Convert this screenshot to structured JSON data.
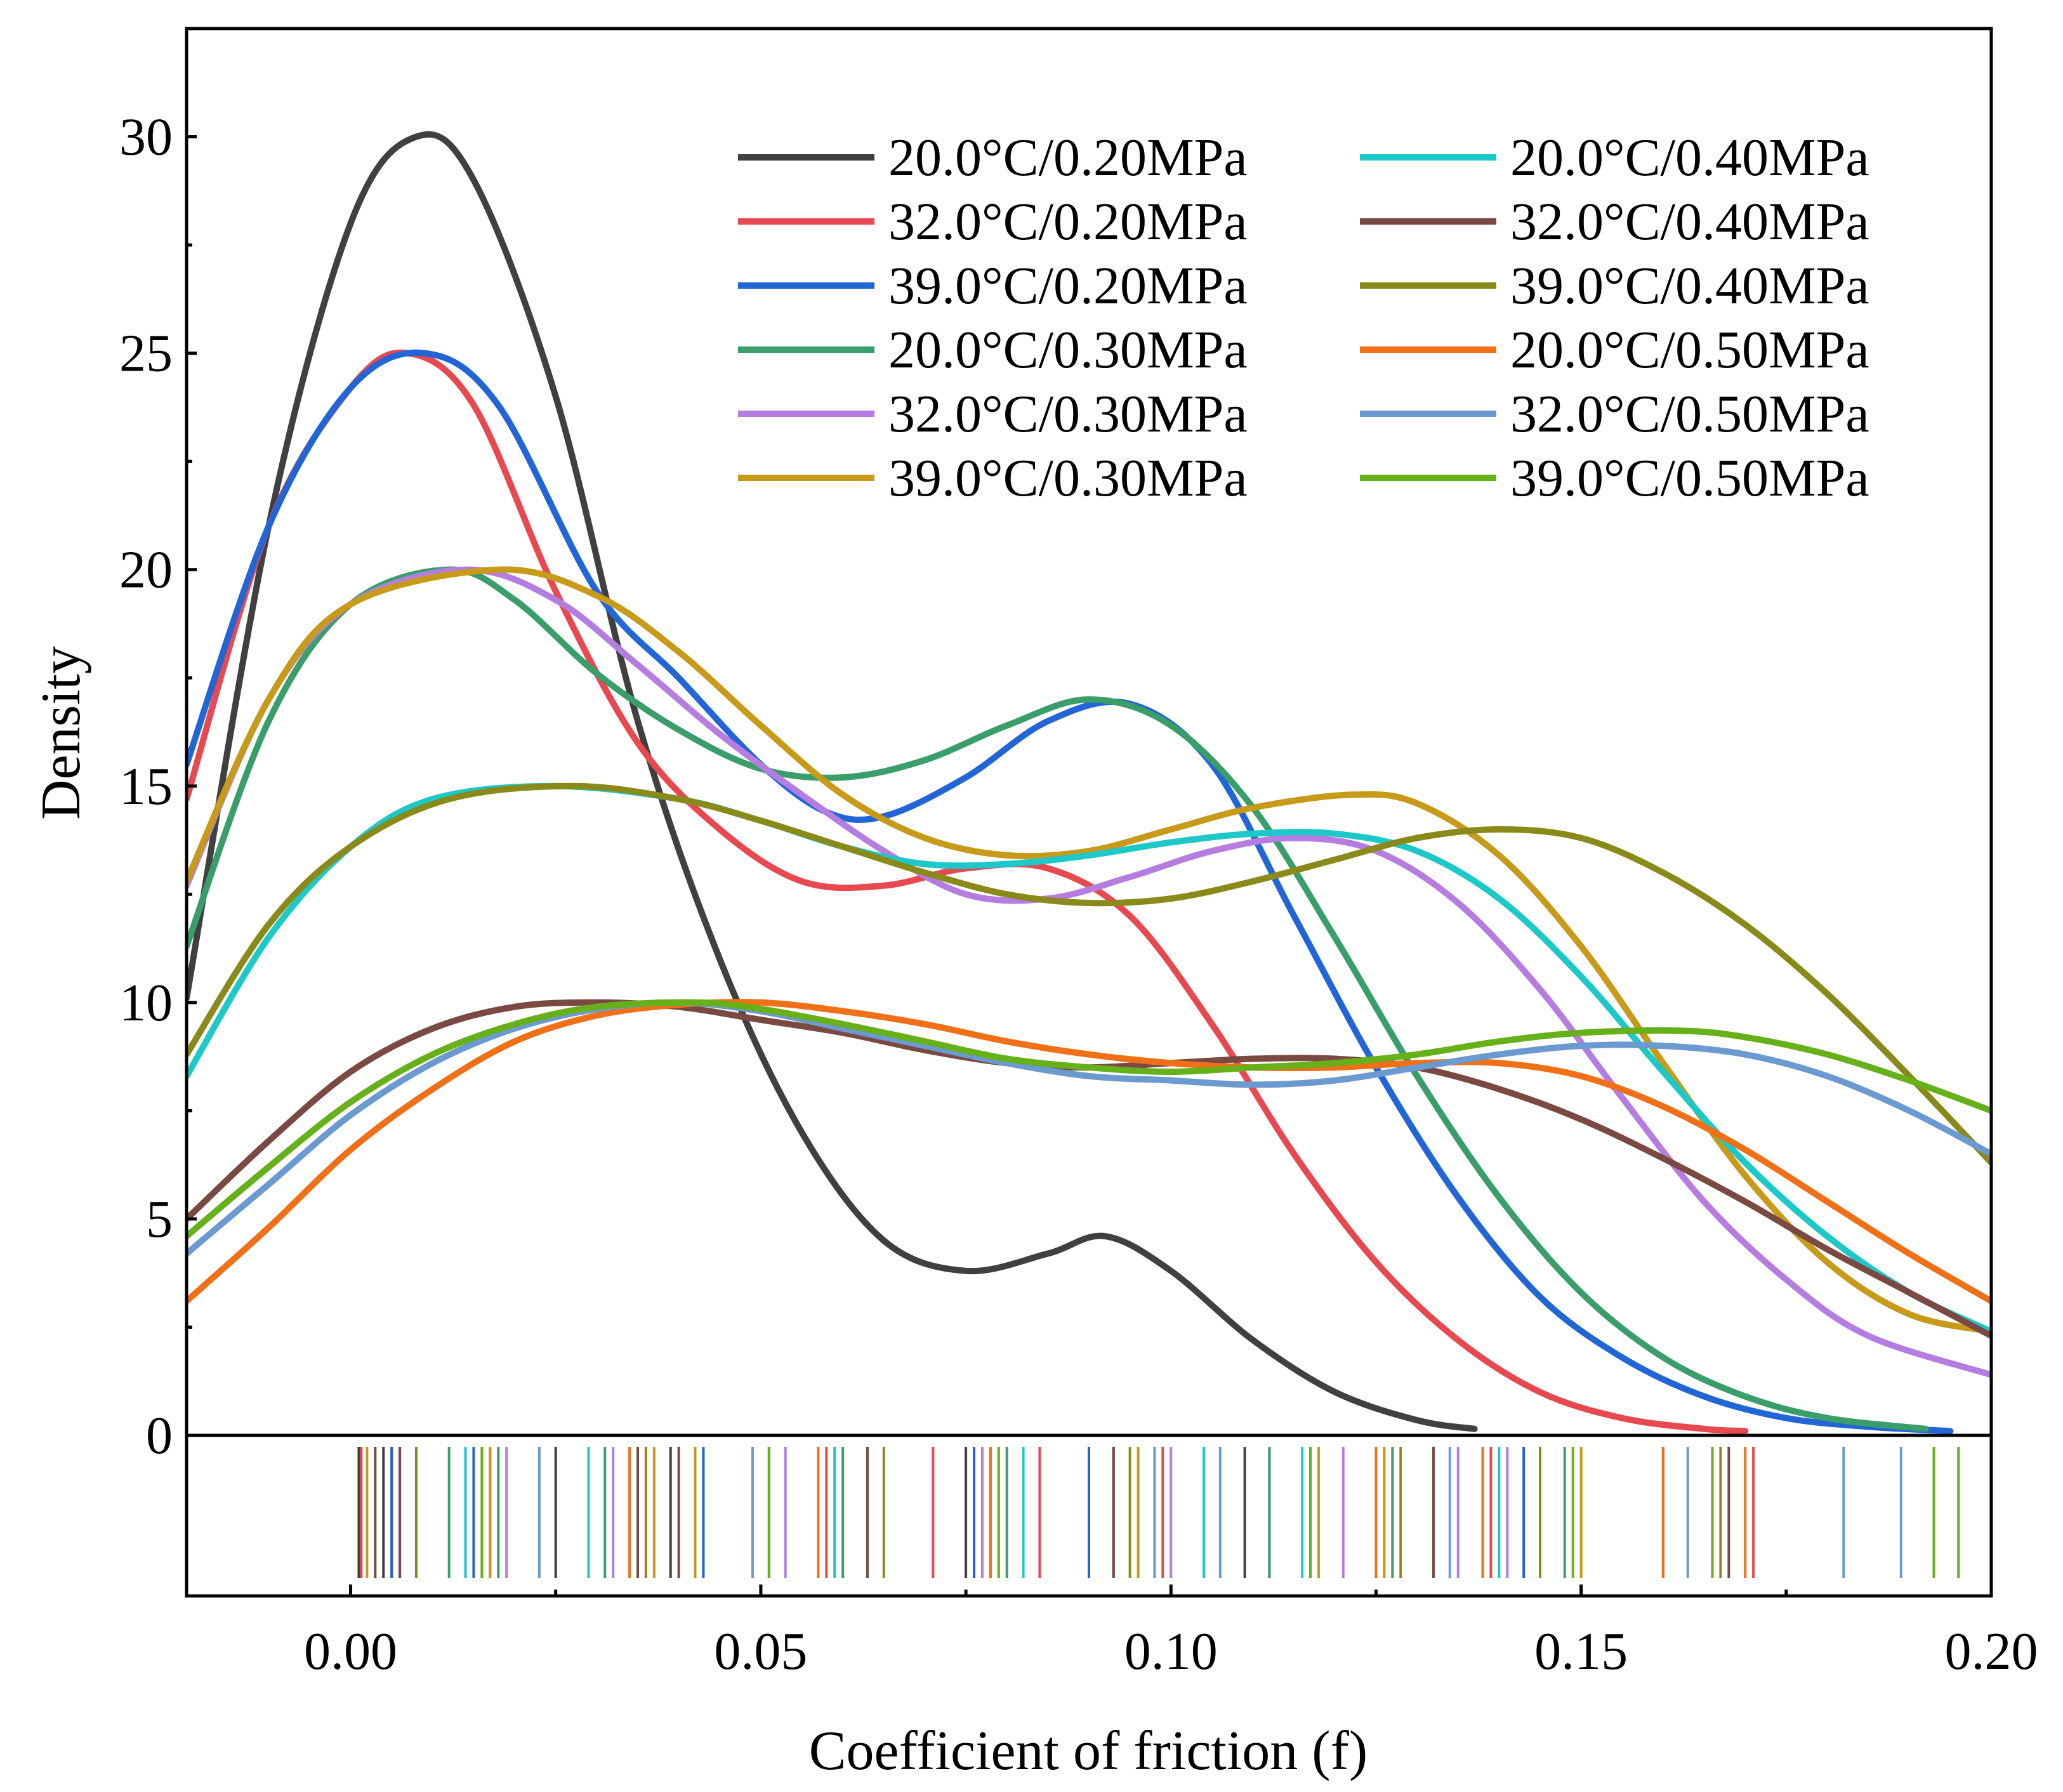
{
  "chart_data": {
    "type": "line",
    "title": "",
    "xlabel": "Coefficient of friction (f)",
    "ylabel": "Density",
    "xlim": [
      -0.02,
      0.2
    ],
    "ylim": [
      0,
      32.5
    ],
    "x_ticks": [
      0.0,
      0.05,
      0.1,
      0.15,
      0.2
    ],
    "x_tick_labels": [
      "0.00",
      "0.05",
      "0.10",
      "0.15",
      "0.20"
    ],
    "y_ticks": [
      0,
      5,
      10,
      15,
      20,
      25,
      30
    ],
    "y_tick_labels": [
      "0",
      "5",
      "10",
      "15",
      "20",
      "25",
      "30"
    ],
    "legend_position": "top-right",
    "series": [
      {
        "name": "20.0°C/0.20MPa",
        "color": "#404040",
        "points": [
          [
            -0.02,
            10.1
          ],
          [
            -0.01,
            21
          ],
          [
            0.0,
            28
          ],
          [
            0.008,
            30
          ],
          [
            0.015,
            29
          ],
          [
            0.025,
            24
          ],
          [
            0.035,
            16.5
          ],
          [
            0.045,
            11
          ],
          [
            0.055,
            7
          ],
          [
            0.065,
            4.5
          ],
          [
            0.075,
            3.8
          ],
          [
            0.085,
            4.2
          ],
          [
            0.092,
            4.6
          ],
          [
            0.1,
            3.8
          ],
          [
            0.11,
            2.2
          ],
          [
            0.12,
            1
          ],
          [
            0.13,
            0.35
          ],
          [
            0.137,
            0.15
          ]
        ],
        "rug": [
          0.001,
          0.004,
          0.006,
          0.008,
          0.025,
          0.039,
          0.075,
          0.093,
          0.109,
          0.132
        ]
      },
      {
        "name": "32.0°C/0.20MPa",
        "color": "#e8484f",
        "points": [
          [
            -0.02,
            14.7
          ],
          [
            -0.01,
            21
          ],
          [
            0.0,
            24.2
          ],
          [
            0.007,
            25
          ],
          [
            0.015,
            23.8
          ],
          [
            0.025,
            19.5
          ],
          [
            0.035,
            16
          ],
          [
            0.045,
            14
          ],
          [
            0.055,
            12.8
          ],
          [
            0.065,
            12.7
          ],
          [
            0.075,
            13.1
          ],
          [
            0.085,
            13.1
          ],
          [
            0.095,
            12
          ],
          [
            0.105,
            9.5
          ],
          [
            0.115,
            6.5
          ],
          [
            0.125,
            4
          ],
          [
            0.135,
            2.2
          ],
          [
            0.145,
            1
          ],
          [
            0.155,
            0.4
          ],
          [
            0.165,
            0.15
          ],
          [
            0.17,
            0.1
          ]
        ],
        "rug": [
          0.0013,
          0.005,
          0.017,
          0.036,
          0.058,
          0.071,
          0.084,
          0.099,
          0.126,
          0.139,
          0.171
        ]
      },
      {
        "name": "39.0°C/0.20MPa",
        "color": "#2266d6",
        "points": [
          [
            -0.02,
            15.5
          ],
          [
            -0.01,
            21
          ],
          [
            0.0,
            24.2
          ],
          [
            0.009,
            25
          ],
          [
            0.018,
            23.8
          ],
          [
            0.03,
            19.5
          ],
          [
            0.04,
            17.5
          ],
          [
            0.05,
            15.5
          ],
          [
            0.058,
            14.4
          ],
          [
            0.065,
            14.3
          ],
          [
            0.075,
            15.2
          ],
          [
            0.085,
            16.5
          ],
          [
            0.095,
            16.9
          ],
          [
            0.105,
            15.5
          ],
          [
            0.115,
            12
          ],
          [
            0.125,
            8.5
          ],
          [
            0.135,
            5.5
          ],
          [
            0.145,
            3.2
          ],
          [
            0.155,
            1.8
          ],
          [
            0.165,
            0.9
          ],
          [
            0.175,
            0.4
          ],
          [
            0.185,
            0.2
          ],
          [
            0.195,
            0.1
          ]
        ],
        "rug": [
          0.005,
          0.015,
          0.043,
          0.076,
          0.09,
          0.112,
          0.143,
          0.16
        ]
      },
      {
        "name": "20.0°C/0.30MPa",
        "color": "#3a9e6a",
        "points": [
          [
            -0.02,
            11.3
          ],
          [
            -0.01,
            16.5
          ],
          [
            0.0,
            19.2
          ],
          [
            0.012,
            20
          ],
          [
            0.02,
            19.3
          ],
          [
            0.03,
            17.6
          ],
          [
            0.04,
            16.3
          ],
          [
            0.05,
            15.4
          ],
          [
            0.06,
            15.2
          ],
          [
            0.07,
            15.6
          ],
          [
            0.08,
            16.4
          ],
          [
            0.09,
            17
          ],
          [
            0.1,
            16.4
          ],
          [
            0.11,
            14.5
          ],
          [
            0.12,
            11.5
          ],
          [
            0.13,
            8.3
          ],
          [
            0.14,
            5.5
          ],
          [
            0.15,
            3.3
          ],
          [
            0.16,
            1.8
          ],
          [
            0.17,
            0.9
          ],
          [
            0.18,
            0.4
          ],
          [
            0.192,
            0.15
          ]
        ],
        "rug": [
          0.012,
          0.018,
          0.031,
          0.051,
          0.06,
          0.08,
          0.096,
          0.112,
          0.127,
          0.148
        ]
      },
      {
        "name": "32.0°C/0.30MPa",
        "color": "#b57de0",
        "points": [
          [
            -0.02,
            12.7
          ],
          [
            -0.01,
            17
          ],
          [
            0.0,
            19.2
          ],
          [
            0.014,
            20
          ],
          [
            0.025,
            19.3
          ],
          [
            0.035,
            17.8
          ],
          [
            0.045,
            16.2
          ],
          [
            0.055,
            14.8
          ],
          [
            0.065,
            13.5
          ],
          [
            0.075,
            12.5
          ],
          [
            0.085,
            12.4
          ],
          [
            0.095,
            12.9
          ],
          [
            0.105,
            13.5
          ],
          [
            0.115,
            13.8
          ],
          [
            0.125,
            13.5
          ],
          [
            0.135,
            12.3
          ],
          [
            0.145,
            10.3
          ],
          [
            0.155,
            7.8
          ],
          [
            0.165,
            5.4
          ],
          [
            0.175,
            3.6
          ],
          [
            0.185,
            2.3
          ],
          [
            0.2,
            1.4
          ]
        ],
        "rug": [
          0.008,
          0.019,
          0.032,
          0.053,
          0.077,
          0.1,
          0.121,
          0.135,
          0.141
        ]
      },
      {
        "name": "39.0°C/0.30MPa",
        "color": "#c89a1a",
        "points": [
          [
            -0.02,
            12.8
          ],
          [
            -0.01,
            17
          ],
          [
            0.0,
            19.2
          ],
          [
            0.018,
            20
          ],
          [
            0.03,
            19.4
          ],
          [
            0.04,
            18.1
          ],
          [
            0.05,
            16.4
          ],
          [
            0.06,
            14.8
          ],
          [
            0.07,
            13.8
          ],
          [
            0.08,
            13.4
          ],
          [
            0.09,
            13.5
          ],
          [
            0.1,
            14
          ],
          [
            0.11,
            14.5
          ],
          [
            0.122,
            14.8
          ],
          [
            0.13,
            14.6
          ],
          [
            0.14,
            13.4
          ],
          [
            0.15,
            11.3
          ],
          [
            0.16,
            8.6
          ],
          [
            0.17,
            6
          ],
          [
            0.18,
            4
          ],
          [
            0.19,
            2.8
          ],
          [
            0.2,
            2.4
          ]
        ],
        "rug": [
          0.002,
          0.017,
          0.037,
          0.042,
          0.078,
          0.096,
          0.118,
          0.126,
          0.15
        ]
      },
      {
        "name": "20.0°C/0.40MPa",
        "color": "#1cc8c8",
        "points": [
          [
            -0.02,
            8.3
          ],
          [
            -0.01,
            11.5
          ],
          [
            0.0,
            13.6
          ],
          [
            0.01,
            14.7
          ],
          [
            0.025,
            15
          ],
          [
            0.04,
            14.7
          ],
          [
            0.05,
            14.2
          ],
          [
            0.06,
            13.6
          ],
          [
            0.07,
            13.2
          ],
          [
            0.08,
            13.2
          ],
          [
            0.09,
            13.4
          ],
          [
            0.1,
            13.7
          ],
          [
            0.11,
            13.9
          ],
          [
            0.12,
            13.9
          ],
          [
            0.13,
            13.5
          ],
          [
            0.14,
            12.4
          ],
          [
            0.15,
            10.6
          ],
          [
            0.16,
            8.4
          ],
          [
            0.17,
            6.3
          ],
          [
            0.18,
            4.6
          ],
          [
            0.19,
            3.3
          ],
          [
            0.2,
            2.4
          ]
        ],
        "rug": [
          0.014,
          0.029,
          0.059,
          0.082,
          0.104,
          0.116,
          0.14
        ]
      },
      {
        "name": "32.0°C/0.40MPa",
        "color": "#7a4a42",
        "points": [
          [
            -0.02,
            5
          ],
          [
            -0.01,
            6.8
          ],
          [
            0.0,
            8.4
          ],
          [
            0.01,
            9.4
          ],
          [
            0.02,
            9.9
          ],
          [
            0.03,
            10
          ],
          [
            0.04,
            9.9
          ],
          [
            0.05,
            9.6
          ],
          [
            0.06,
            9.3
          ],
          [
            0.07,
            8.9
          ],
          [
            0.08,
            8.6
          ],
          [
            0.09,
            8.5
          ],
          [
            0.1,
            8.6
          ],
          [
            0.11,
            8.7
          ],
          [
            0.12,
            8.7
          ],
          [
            0.13,
            8.5
          ],
          [
            0.14,
            8
          ],
          [
            0.15,
            7.3
          ],
          [
            0.16,
            6.4
          ],
          [
            0.17,
            5.4
          ],
          [
            0.18,
            4.3
          ],
          [
            0.19,
            3.3
          ],
          [
            0.2,
            2.3
          ]
        ],
        "rug": [
          0.003,
          0.006,
          0.035,
          0.04,
          0.063,
          0.093,
          0.132,
          0.168
        ]
      },
      {
        "name": "39.0°C/0.40MPa",
        "color": "#8a8a1a",
        "points": [
          [
            -0.02,
            8.8
          ],
          [
            -0.01,
            11.8
          ],
          [
            0.0,
            13.6
          ],
          [
            0.012,
            14.7
          ],
          [
            0.027,
            15
          ],
          [
            0.04,
            14.7
          ],
          [
            0.05,
            14.2
          ],
          [
            0.06,
            13.6
          ],
          [
            0.07,
            13
          ],
          [
            0.08,
            12.5
          ],
          [
            0.09,
            12.3
          ],
          [
            0.1,
            12.4
          ],
          [
            0.11,
            12.8
          ],
          [
            0.12,
            13.3
          ],
          [
            0.13,
            13.8
          ],
          [
            0.14,
            14
          ],
          [
            0.15,
            13.8
          ],
          [
            0.16,
            13
          ],
          [
            0.17,
            11.8
          ],
          [
            0.18,
            10.2
          ],
          [
            0.19,
            8.3
          ],
          [
            0.2,
            6.3
          ]
        ],
        "rug": [
          0.008,
          0.036,
          0.065,
          0.095,
          0.128,
          0.145,
          0.167
        ]
      },
      {
        "name": "20.0°C/0.50MPa",
        "color": "#f07018",
        "points": [
          [
            -0.02,
            3.1
          ],
          [
            -0.01,
            4.8
          ],
          [
            0.0,
            6.6
          ],
          [
            0.01,
            8
          ],
          [
            0.02,
            9.1
          ],
          [
            0.03,
            9.7
          ],
          [
            0.04,
            9.95
          ],
          [
            0.05,
            10
          ],
          [
            0.06,
            9.8
          ],
          [
            0.07,
            9.5
          ],
          [
            0.08,
            9.1
          ],
          [
            0.09,
            8.8
          ],
          [
            0.1,
            8.6
          ],
          [
            0.11,
            8.5
          ],
          [
            0.12,
            8.5
          ],
          [
            0.13,
            8.6
          ],
          [
            0.14,
            8.6
          ],
          [
            0.15,
            8.3
          ],
          [
            0.16,
            7.6
          ],
          [
            0.17,
            6.6
          ],
          [
            0.18,
            5.4
          ],
          [
            0.19,
            4.2
          ],
          [
            0.2,
            3.1
          ]
        ],
        "rug": [
          0.016,
          0.034,
          0.057,
          0.078,
          0.125,
          0.138,
          0.16,
          0.17
        ]
      },
      {
        "name": "32.0°C/0.50MPa",
        "color": "#6a9ad0",
        "points": [
          [
            -0.02,
            4.2
          ],
          [
            -0.01,
            5.8
          ],
          [
            0.0,
            7.4
          ],
          [
            0.01,
            8.6
          ],
          [
            0.02,
            9.4
          ],
          [
            0.03,
            9.85
          ],
          [
            0.04,
            10
          ],
          [
            0.05,
            9.8
          ],
          [
            0.06,
            9.4
          ],
          [
            0.07,
            9
          ],
          [
            0.08,
            8.6
          ],
          [
            0.09,
            8.3
          ],
          [
            0.1,
            8.2
          ],
          [
            0.11,
            8.1
          ],
          [
            0.12,
            8.2
          ],
          [
            0.13,
            8.5
          ],
          [
            0.14,
            8.8
          ],
          [
            0.15,
            9
          ],
          [
            0.16,
            9
          ],
          [
            0.17,
            8.8
          ],
          [
            0.18,
            8.3
          ],
          [
            0.19,
            7.5
          ],
          [
            0.2,
            6.5
          ]
        ],
        "rug": [
          0.023,
          0.049,
          0.098,
          0.106,
          0.134,
          0.163,
          0.182,
          0.189
        ]
      },
      {
        "name": "39.0°C/0.50MPa",
        "color": "#66b01a",
        "points": [
          [
            -0.02,
            4.6
          ],
          [
            -0.01,
            6.2
          ],
          [
            0.0,
            7.7
          ],
          [
            0.01,
            8.8
          ],
          [
            0.02,
            9.5
          ],
          [
            0.03,
            9.9
          ],
          [
            0.042,
            10
          ],
          [
            0.05,
            9.85
          ],
          [
            0.06,
            9.5
          ],
          [
            0.07,
            9.1
          ],
          [
            0.08,
            8.7
          ],
          [
            0.09,
            8.5
          ],
          [
            0.1,
            8.4
          ],
          [
            0.11,
            8.5
          ],
          [
            0.12,
            8.6
          ],
          [
            0.13,
            8.8
          ],
          [
            0.14,
            9.1
          ],
          [
            0.15,
            9.3
          ],
          [
            0.162,
            9.35
          ],
          [
            0.17,
            9.2
          ],
          [
            0.18,
            8.8
          ],
          [
            0.19,
            8.2
          ],
          [
            0.2,
            7.5
          ]
        ],
        "rug": [
          0.016,
          0.051,
          0.079,
          0.117,
          0.149,
          0.166,
          0.193,
          0.196
        ]
      }
    ]
  }
}
